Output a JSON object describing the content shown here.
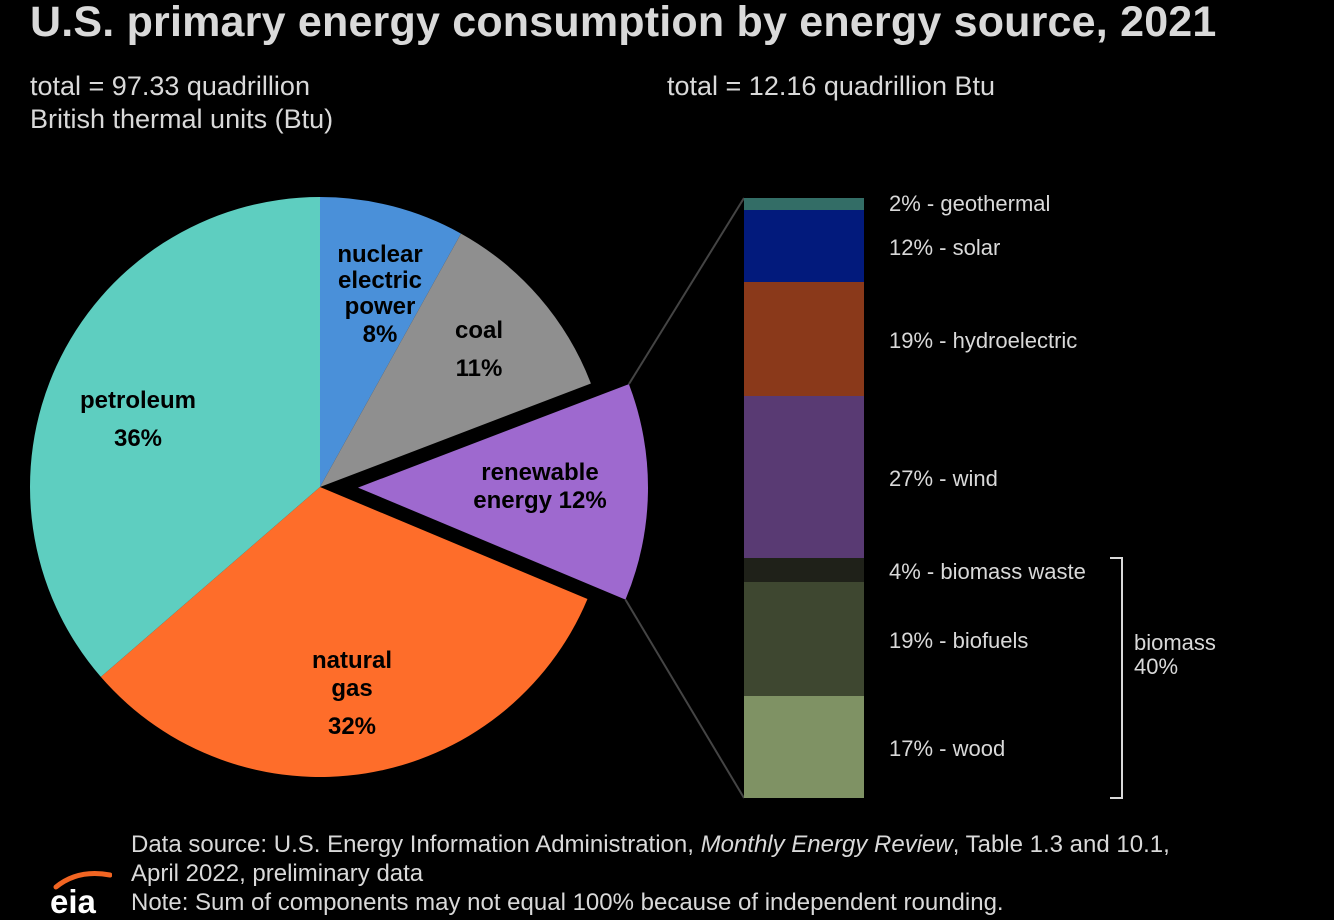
{
  "title": "U.S. primary energy consumption by energy source, 2021",
  "subtitle_left_line1": "total = 97.33 quadrillion",
  "subtitle_left_line2": "British thermal units (Btu)",
  "subtitle_right": "total = 12.16 quadrillion Btu",
  "footer": {
    "source_prefix": "Data source: U.S. Energy Information Administration, ",
    "source_italic": "Monthly Energy Review",
    "source_suffix": ", Table 1.3 and 10.1,",
    "source_line2": "April 2022, preliminary data",
    "note": "Note: Sum of components may not equal 100% because of independent rounding."
  },
  "logo_text": "eia",
  "chart_data": [
    {
      "type": "pie",
      "slices": [
        {
          "label_lines": [
            "nuclear",
            "electric",
            "power"
          ],
          "pct_label": "8%",
          "value": 8,
          "color": "#4a90d9"
        },
        {
          "label_lines": [
            "coal"
          ],
          "pct_label": "11%",
          "value": 11,
          "color": "#8f8f8f"
        },
        {
          "label_lines": [
            "renewable",
            "energy 12%"
          ],
          "pct_label": "",
          "value": 12,
          "color": "#9e69cf",
          "exploded": true
        },
        {
          "label_lines": [
            "natural",
            "gas"
          ],
          "pct_label": "32%",
          "value": 32,
          "color": "#fe6d2a"
        },
        {
          "label_lines": [
            "petroleum"
          ],
          "pct_label": "36%",
          "value": 36,
          "color": "#5ecec0"
        }
      ]
    },
    {
      "type": "bar",
      "stacked": true,
      "segments": [
        {
          "label": "2% - geothermal",
          "value": 2,
          "color": "#336d66"
        },
        {
          "label": "12% - solar",
          "value": 12,
          "color": "#021a7c"
        },
        {
          "label": "19% - hydroelectric",
          "value": 19,
          "color": "#8a391a"
        },
        {
          "label": "27% - wind",
          "value": 27,
          "color": "#593a73"
        },
        {
          "label": "4% - biomass waste",
          "value": 4,
          "color": "#1f2119"
        },
        {
          "label": "19% - biofuels",
          "value": 19,
          "color": "#3e4730"
        },
        {
          "label": "17% - wood",
          "value": 17,
          "color": "#7f9264"
        }
      ],
      "group_label_line1": "biomass",
      "group_label_line2": "40%"
    }
  ]
}
